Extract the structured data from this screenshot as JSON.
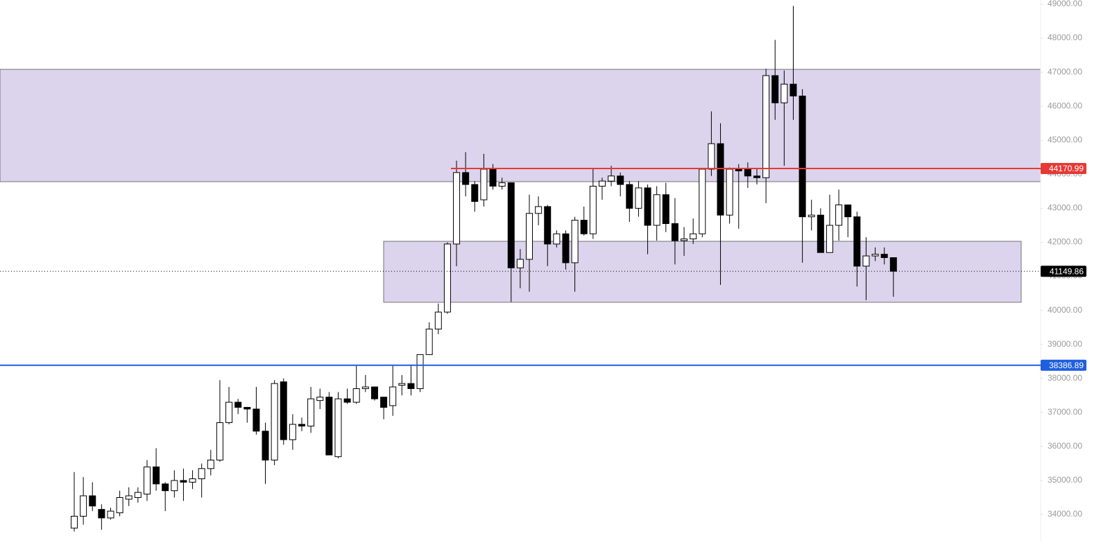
{
  "chart_data": {
    "type": "candlestick",
    "open": [
      33600,
      33950,
      34550,
      34150,
      33900,
      34050,
      34450,
      34500,
      34600,
      35400,
      34900,
      34700,
      35000,
      34950,
      35050,
      35350,
      35600,
      36700,
      37300,
      37150,
      37100,
      36450,
      35600,
      37900,
      36200,
      36650,
      36600,
      37350,
      37450,
      35700,
      37400,
      37300,
      37700,
      37750,
      37450,
      37200,
      37800,
      37850,
      37700,
      38700,
      39450,
      39950,
      41950,
      44050,
      43700,
      43250,
      44150,
      43650,
      43750,
      41250,
      41500,
      42850,
      43050,
      41950,
      42250,
      41400,
      42650,
      42250,
      43650,
      43800,
      43950,
      43700,
      43000,
      43600,
      42500,
      43400,
      42550,
      42050,
      42100,
      42250,
      44150,
      44900,
      42800,
      44150,
      44150,
      43950,
      43900,
      46900,
      46100,
      46650,
      46300,
      42750,
      42800,
      41700,
      42500,
      43100,
      42750,
      41300,
      41600,
      41650,
      41550
    ],
    "high": [
      35250,
      35100,
      34950,
      34300,
      34200,
      34700,
      34800,
      34800,
      35600,
      35950,
      34950,
      35300,
      35350,
      35300,
      35500,
      35900,
      37950,
      37750,
      37400,
      37150,
      37750,
      36700,
      37950,
      38000,
      36950,
      36850,
      37750,
      37700,
      37600,
      37600,
      37700,
      38400,
      38100,
      37750,
      37450,
      38400,
      38100,
      38400,
      38700,
      39650,
      40200,
      42000,
      44400,
      44650,
      43800,
      44600,
      44300,
      43900,
      43750,
      41800,
      43400,
      43350,
      43100,
      42350,
      42350,
      42750,
      43050,
      44150,
      43900,
      44250,
      44050,
      43800,
      43800,
      43700,
      43650,
      43750,
      43300,
      42450,
      42700,
      44150,
      45850,
      45500,
      44200,
      44300,
      44350,
      44150,
      47100,
      47950,
      47050,
      48950,
      46500,
      43250,
      43000,
      43400,
      43550,
      43100,
      42900,
      42150,
      41850,
      41850,
      41550
    ],
    "low": [
      33500,
      33700,
      34100,
      33550,
      33850,
      33950,
      34250,
      34350,
      34400,
      34700,
      34100,
      34500,
      34400,
      34750,
      34500,
      35150,
      35550,
      36650,
      36950,
      36700,
      36350,
      34900,
      35450,
      36050,
      35900,
      36450,
      36400,
      37100,
      35750,
      35650,
      37250,
      37250,
      37600,
      37350,
      36800,
      36900,
      37500,
      37500,
      37600,
      38700,
      39300,
      39900,
      41300,
      43350,
      42900,
      43050,
      43550,
      43550,
      40250,
      40650,
      40550,
      42500,
      41300,
      41850,
      41200,
      40550,
      42200,
      42100,
      43250,
      43650,
      43350,
      42600,
      42750,
      41650,
      42050,
      42300,
      41350,
      41600,
      41950,
      42150,
      43950,
      40750,
      42550,
      42400,
      43600,
      43700,
      43150,
      45600,
      44250,
      45600,
      41400,
      42350,
      41700,
      41700,
      42050,
      42150,
      40700,
      40300,
      41450,
      41350,
      40400
    ],
    "close": [
      33950,
      34550,
      34250,
      33900,
      34100,
      34500,
      34550,
      34650,
      35400,
      34900,
      34700,
      35000,
      34950,
      35050,
      35350,
      35600,
      36700,
      37300,
      37150,
      37100,
      36450,
      35600,
      37850,
      36200,
      36650,
      36600,
      37400,
      37450,
      35750,
      37400,
      37300,
      37700,
      37750,
      37400,
      37150,
      37750,
      37850,
      37700,
      38700,
      39450,
      39950,
      41950,
      44050,
      43700,
      43200,
      44150,
      43650,
      43750,
      41250,
      41500,
      42850,
      43050,
      41950,
      42250,
      41400,
      42650,
      42250,
      43650,
      43800,
      43950,
      43700,
      43000,
      43600,
      42500,
      43400,
      42550,
      42050,
      42100,
      42250,
      44150,
      44900,
      42800,
      44150,
      44100,
      43950,
      43900,
      46900,
      46100,
      46650,
      46300,
      42750,
      42800,
      41700,
      42500,
      43100,
      42750,
      41300,
      41600,
      41650,
      41550,
      41150
    ],
    "up_color": "#ffffff",
    "down_color": "#000000",
    "zones": [
      {
        "top": 47084,
        "bottom": 43783,
        "color": "#dcd3ec"
      },
      {
        "top": 42030,
        "bottom": 40237,
        "color": "#dcd3ec"
      }
    ],
    "price_lines": [
      {
        "value": 44170.99,
        "color": "#e53935",
        "style": "solid"
      },
      {
        "value": 41149.86,
        "color": "#000000",
        "style": "dotted"
      },
      {
        "value": 38386.89,
        "color": "#1e5fe0",
        "style": "solid"
      }
    ],
    "ylim": [
      33206,
      49122
    ],
    "yticks": [
      {
        "value": 34000,
        "label": "34000.00"
      },
      {
        "value": 35000,
        "label": "35000.00"
      },
      {
        "value": 36000,
        "label": "36000.00"
      },
      {
        "value": 37000,
        "label": "37000.00"
      },
      {
        "value": 38000,
        "label": "38000.00"
      },
      {
        "value": 39000,
        "label": "39000.00"
      },
      {
        "value": 40000,
        "label": "40000.00"
      },
      {
        "value": 41000,
        "label": "41000.00"
      },
      {
        "value": 42000,
        "label": "42000.00"
      },
      {
        "value": 43000,
        "label": "43000.00"
      },
      {
        "value": 44000,
        "label": "44000.00"
      },
      {
        "value": 45000,
        "label": "45000.00"
      },
      {
        "value": 46000,
        "label": "46000.00"
      },
      {
        "value": 47000,
        "label": "47000.00"
      },
      {
        "value": 48000,
        "label": "48000.00"
      },
      {
        "value": 49000,
        "label": "49000.00"
      }
    ]
  }
}
